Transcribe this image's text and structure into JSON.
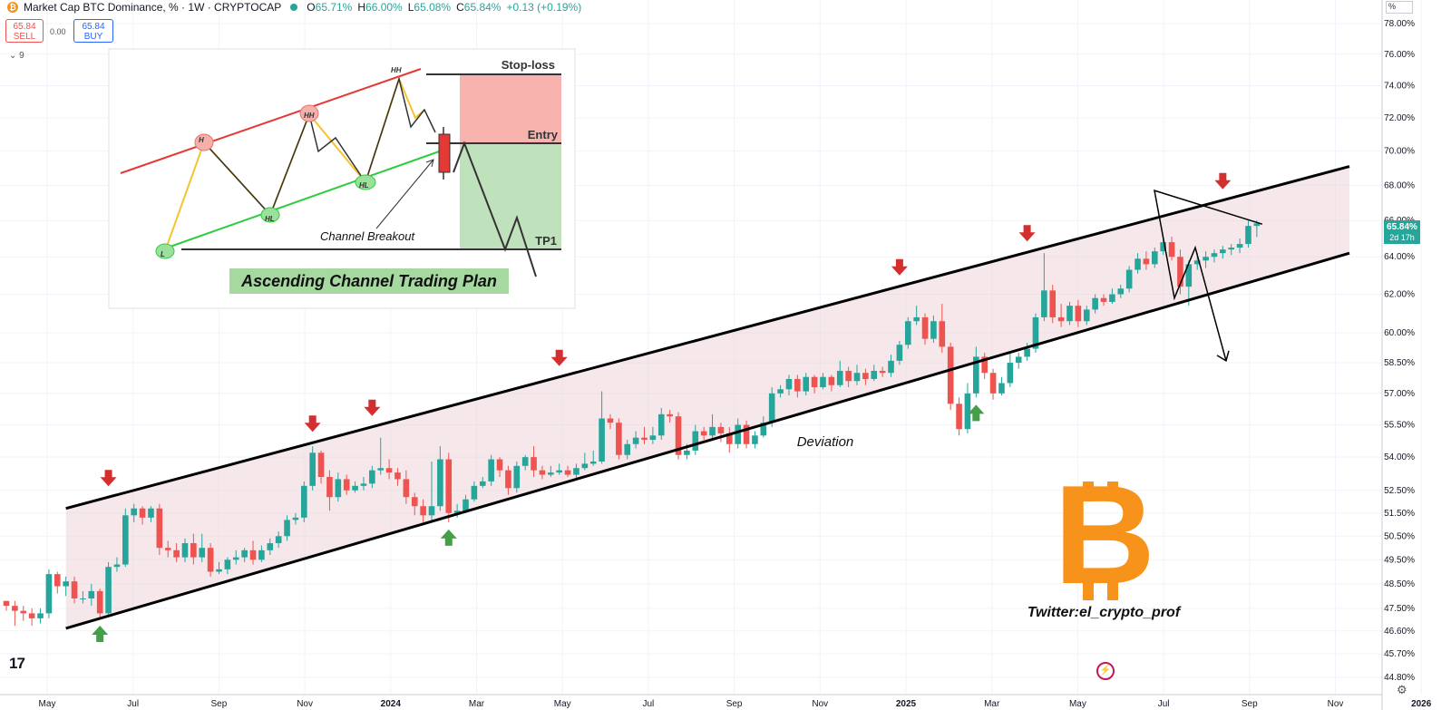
{
  "header": {
    "symbol_icon": "bitcoin-icon",
    "title": "Market Cap BTC Dominance, % · 1W · CRYPTOCAP",
    "open_label": "O",
    "open": "65.71%",
    "high_label": "H",
    "high": "66.00%",
    "low_label": "L",
    "low": "65.08%",
    "close_label": "C",
    "close": "65.84%",
    "change": "+0.13 (+0.19%)"
  },
  "trade": {
    "sell_price": "65.84",
    "sell_label": "SELL",
    "spread": "0.00",
    "buy_price": "65.84",
    "buy_label": "BUY"
  },
  "indicators_toggle": "9",
  "percent_label": "%",
  "brand_mark": "17",
  "colors": {
    "up": "#26a69a",
    "down": "#ef5350",
    "channel_fill": "#ecd4d8",
    "accent_orange": "#f7931a",
    "marker_red": "#d32f2f",
    "marker_green": "#43a047"
  },
  "chart_data": {
    "type": "candlestick",
    "y_axis": {
      "unit": "%",
      "scale": "log",
      "ticks": [
        "78.00%",
        "76.00%",
        "74.00%",
        "72.00%",
        "70.00%",
        "68.00%",
        "66.00%",
        "64.00%",
        "62.00%",
        "60.00%",
        "58.50%",
        "57.00%",
        "55.50%",
        "54.00%",
        "52.50%",
        "51.50%",
        "50.50%",
        "49.50%",
        "48.50%",
        "47.50%",
        "46.60%",
        "45.70%",
        "44.80%"
      ]
    },
    "x_axis": {
      "ticks": [
        "May",
        "Jul",
        "Sep",
        "Nov",
        "2024",
        "Mar",
        "May",
        "Jul",
        "Sep",
        "Nov",
        "2025",
        "Mar",
        "May",
        "Jul",
        "Sep",
        "Nov",
        "2026"
      ],
      "bold": [
        "2024",
        "2025",
        "2026"
      ]
    },
    "last_price_label": "65.84%",
    "countdown": "2d 17h",
    "candles": [
      [
        47.8,
        47.6,
        47.4,
        47.8
      ],
      [
        47.6,
        47.4,
        46.8,
        47.8
      ],
      [
        47.4,
        47.3,
        47.0,
        47.6
      ],
      [
        47.3,
        47.1,
        46.8,
        47.5
      ],
      [
        47.1,
        47.3,
        46.9,
        47.5
      ],
      [
        47.3,
        48.9,
        47.1,
        49.1
      ],
      [
        48.9,
        48.4,
        48.1,
        49.0
      ],
      [
        48.4,
        48.6,
        48.0,
        48.8
      ],
      [
        48.6,
        47.9,
        47.7,
        48.8
      ],
      [
        47.9,
        47.9,
        47.7,
        48.2
      ],
      [
        47.9,
        48.2,
        47.6,
        48.5
      ],
      [
        48.2,
        47.3,
        47.1,
        48.3
      ],
      [
        47.3,
        49.2,
        47.2,
        49.4
      ],
      [
        49.2,
        49.3,
        49.0,
        49.6
      ],
      [
        49.3,
        51.4,
        49.2,
        51.7
      ],
      [
        51.4,
        51.7,
        51.1,
        51.9
      ],
      [
        51.7,
        51.3,
        51.0,
        51.8
      ],
      [
        51.3,
        51.7,
        51.1,
        51.8
      ],
      [
        51.7,
        50.0,
        49.7,
        51.9
      ],
      [
        50.0,
        49.9,
        49.6,
        50.3
      ],
      [
        49.9,
        49.6,
        49.4,
        50.2
      ],
      [
        49.6,
        50.2,
        49.4,
        50.4
      ],
      [
        50.2,
        49.6,
        49.3,
        50.6
      ],
      [
        49.6,
        50.0,
        49.4,
        50.6
      ],
      [
        50.0,
        49.0,
        48.8,
        50.2
      ],
      [
        49.0,
        49.1,
        48.9,
        49.4
      ],
      [
        49.1,
        49.5,
        48.9,
        49.6
      ],
      [
        49.5,
        49.6,
        49.3,
        49.9
      ],
      [
        49.6,
        49.9,
        49.4,
        50.0
      ],
      [
        49.9,
        49.5,
        49.3,
        50.3
      ],
      [
        49.5,
        49.9,
        49.4,
        50.1
      ],
      [
        49.9,
        50.2,
        49.7,
        50.4
      ],
      [
        50.2,
        50.5,
        50.0,
        50.7
      ],
      [
        50.5,
        51.2,
        50.3,
        51.4
      ],
      [
        51.2,
        51.3,
        51.0,
        51.5
      ],
      [
        51.3,
        52.7,
        51.1,
        52.9
      ],
      [
        52.7,
        54.2,
        52.5,
        54.5
      ],
      [
        54.2,
        53.1,
        52.8,
        54.3
      ],
      [
        53.1,
        52.2,
        51.6,
        53.4
      ],
      [
        52.2,
        53.0,
        52.0,
        53.3
      ],
      [
        53.0,
        52.5,
        52.3,
        53.2
      ],
      [
        52.5,
        52.7,
        52.4,
        52.9
      ],
      [
        52.7,
        52.8,
        52.5,
        53.1
      ],
      [
        52.8,
        53.4,
        52.6,
        53.6
      ],
      [
        53.4,
        53.5,
        53.2,
        54.9
      ],
      [
        53.5,
        53.3,
        53.0,
        53.9
      ],
      [
        53.3,
        53.0,
        52.7,
        53.5
      ],
      [
        53.0,
        52.2,
        51.9,
        53.4
      ],
      [
        52.2,
        51.8,
        51.4,
        52.4
      ],
      [
        51.8,
        51.4,
        51.1,
        52.1
      ],
      [
        51.4,
        51.8,
        51.1,
        53.8
      ],
      [
        51.8,
        53.9,
        51.6,
        54.5
      ],
      [
        53.9,
        51.5,
        51.1,
        54.2
      ],
      [
        51.5,
        51.6,
        51.3,
        51.9
      ],
      [
        51.6,
        52.1,
        51.5,
        52.3
      ],
      [
        52.1,
        52.7,
        52.0,
        52.9
      ],
      [
        52.7,
        52.9,
        52.6,
        53.1
      ],
      [
        52.9,
        53.9,
        52.7,
        54.1
      ],
      [
        53.9,
        53.4,
        53.1,
        54.0
      ],
      [
        53.4,
        52.6,
        52.3,
        53.6
      ],
      [
        52.6,
        53.6,
        52.4,
        53.8
      ],
      [
        53.6,
        54.0,
        53.4,
        54.1
      ],
      [
        54.0,
        53.4,
        53.1,
        54.5
      ],
      [
        53.4,
        53.2,
        53.0,
        53.6
      ],
      [
        53.2,
        53.3,
        53.1,
        53.6
      ],
      [
        53.3,
        53.4,
        53.2,
        53.7
      ],
      [
        53.4,
        53.2,
        53.1,
        53.6
      ],
      [
        53.2,
        53.5,
        53.0,
        53.7
      ],
      [
        53.5,
        53.7,
        53.4,
        54.2
      ],
      [
        53.7,
        53.8,
        53.6,
        54.3
      ],
      [
        53.8,
        55.8,
        53.7,
        57.1
      ],
      [
        55.8,
        55.6,
        55.3,
        56.0
      ],
      [
        55.6,
        54.1,
        53.9,
        55.8
      ],
      [
        54.1,
        54.6,
        53.9,
        54.8
      ],
      [
        54.6,
        54.9,
        54.4,
        55.2
      ],
      [
        54.9,
        54.8,
        54.6,
        55.4
      ],
      [
        54.8,
        55.0,
        54.6,
        55.4
      ],
      [
        55.0,
        56.0,
        54.8,
        56.3
      ],
      [
        56.0,
        55.9,
        55.6,
        56.2
      ],
      [
        55.9,
        54.1,
        53.9,
        56.1
      ],
      [
        54.1,
        54.3,
        53.9,
        54.6
      ],
      [
        54.3,
        55.2,
        54.1,
        55.5
      ],
      [
        55.2,
        55.0,
        54.8,
        55.4
      ],
      [
        55.0,
        55.4,
        54.8,
        56.0
      ],
      [
        55.4,
        55.1,
        54.7,
        55.6
      ],
      [
        55.1,
        54.6,
        54.2,
        55.4
      ],
      [
        54.6,
        55.5,
        54.4,
        55.8
      ],
      [
        55.5,
        54.6,
        54.4,
        55.7
      ],
      [
        54.6,
        55.0,
        54.4,
        55.2
      ],
      [
        55.0,
        55.6,
        54.9,
        55.9
      ],
      [
        55.6,
        57.0,
        55.4,
        57.3
      ],
      [
        57.0,
        57.2,
        56.8,
        57.4
      ],
      [
        57.2,
        57.7,
        56.9,
        57.9
      ],
      [
        57.7,
        57.1,
        56.8,
        57.9
      ],
      [
        57.1,
        57.8,
        56.9,
        58.0
      ],
      [
        57.8,
        57.3,
        57.0,
        57.9
      ],
      [
        57.3,
        57.8,
        57.2,
        58.0
      ],
      [
        57.8,
        57.4,
        57.1,
        57.9
      ],
      [
        57.4,
        58.1,
        57.3,
        58.6
      ],
      [
        58.1,
        57.6,
        57.3,
        58.3
      ],
      [
        57.6,
        58.0,
        57.4,
        58.4
      ],
      [
        58.0,
        57.7,
        57.4,
        58.2
      ],
      [
        57.7,
        58.1,
        57.6,
        58.4
      ],
      [
        58.1,
        58.0,
        57.8,
        58.3
      ],
      [
        58.0,
        58.6,
        57.8,
        58.9
      ],
      [
        58.6,
        59.4,
        58.4,
        59.6
      ],
      [
        59.4,
        60.6,
        59.2,
        60.8
      ],
      [
        60.6,
        60.8,
        60.4,
        61.4
      ],
      [
        60.8,
        59.7,
        59.4,
        61.0
      ],
      [
        59.7,
        60.6,
        59.5,
        60.9
      ],
      [
        60.6,
        59.3,
        59.0,
        61.5
      ],
      [
        59.3,
        56.5,
        56.2,
        59.5
      ],
      [
        56.5,
        55.3,
        55.0,
        56.8
      ],
      [
        55.3,
        57.0,
        55.1,
        57.5
      ],
      [
        57.0,
        58.8,
        56.8,
        59.3
      ],
      [
        58.8,
        58.0,
        57.7,
        59.0
      ],
      [
        58.0,
        57.0,
        56.7,
        58.2
      ],
      [
        57.0,
        57.5,
        56.9,
        57.8
      ],
      [
        57.5,
        58.5,
        57.3,
        59.0
      ],
      [
        58.5,
        58.8,
        58.2,
        59.0
      ],
      [
        58.8,
        59.2,
        58.6,
        59.5
      ],
      [
        59.2,
        60.8,
        59.0,
        61.0
      ],
      [
        60.8,
        62.2,
        60.6,
        64.2
      ],
      [
        62.2,
        60.8,
        60.5,
        62.5
      ],
      [
        60.8,
        60.6,
        60.3,
        61.5
      ],
      [
        60.6,
        61.4,
        60.4,
        61.6
      ],
      [
        61.4,
        60.6,
        60.3,
        61.7
      ],
      [
        60.6,
        61.2,
        60.4,
        61.4
      ],
      [
        61.2,
        61.8,
        61.0,
        62.0
      ],
      [
        61.8,
        61.6,
        61.4,
        62.0
      ],
      [
        61.6,
        62.0,
        61.5,
        62.3
      ],
      [
        62.0,
        62.3,
        61.8,
        62.5
      ],
      [
        62.3,
        63.3,
        62.1,
        63.5
      ],
      [
        63.3,
        63.9,
        63.1,
        64.2
      ],
      [
        63.9,
        63.6,
        63.3,
        64.3
      ],
      [
        63.6,
        64.3,
        63.4,
        64.5
      ],
      [
        64.3,
        64.8,
        64.1,
        65.0
      ],
      [
        64.8,
        64.0,
        63.8,
        65.1
      ],
      [
        64.0,
        62.4,
        62.0,
        64.4
      ],
      [
        62.4,
        63.6,
        61.4,
        63.8
      ],
      [
        63.6,
        63.8,
        63.3,
        64.2
      ],
      [
        63.8,
        64.0,
        63.4,
        64.3
      ],
      [
        64.0,
        64.2,
        63.7,
        64.4
      ],
      [
        64.2,
        64.4,
        63.9,
        64.6
      ],
      [
        64.4,
        64.5,
        64.1,
        64.7
      ],
      [
        64.5,
        64.7,
        64.2,
        65.0
      ],
      [
        64.7,
        65.7,
        64.5,
        66.0
      ],
      [
        65.7,
        65.84,
        65.08,
        66.0
      ]
    ],
    "channel": {
      "start_index": 7,
      "upper": [
        51.7,
        69.1
      ],
      "lower": [
        46.7,
        64.2
      ]
    },
    "projection": [
      65.8,
      67.7,
      61.8,
      64.5,
      58.6
    ],
    "annotations": {
      "deviation": "Deviation",
      "twitter": "Twitter:el_crypto_prof"
    },
    "markers": {
      "down": [
        12,
        36,
        43,
        65,
        105,
        120,
        143
      ],
      "up": [
        11,
        52,
        114
      ]
    },
    "inset": {
      "title": "Ascending Channel Trading Plan",
      "stop_loss": "Stop-loss",
      "entry": "Entry",
      "tp1": "TP1",
      "breakout": "Channel Breakout",
      "pivots": [
        "L",
        "H",
        "HL",
        "HH",
        "HL",
        "HH"
      ]
    }
  }
}
